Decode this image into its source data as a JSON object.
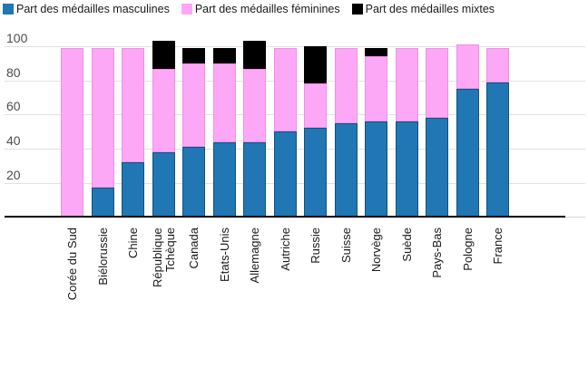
{
  "legend": {
    "items": [
      {
        "label": "Part des médailles masculines",
        "color": "#2077b4"
      },
      {
        "label": "Part des médailles féminines",
        "color": "#fda8f7"
      },
      {
        "label": "Part des médailles mixtes",
        "color": "#000000"
      }
    ]
  },
  "y_axis": {
    "tick_labels": [
      "20",
      "40",
      "60",
      "80",
      "100"
    ]
  },
  "chart_data": {
    "type": "bar",
    "stacked": true,
    "title": "",
    "xlabel": "",
    "ylabel": "",
    "unit": "%",
    "ylim": [
      0,
      105
    ],
    "grid": true,
    "legend_position": "top",
    "categories": [
      "Corée du Sud",
      "Biélorussie",
      "Chine",
      "République Tchèque",
      "Canada",
      "Etats-Unis",
      "Allemagne",
      "Autriche",
      "Russie",
      "Suisse",
      "Norvège",
      "Suède",
      "Pays-Bas",
      "Pologne",
      "France"
    ],
    "y_ticks": [
      20,
      40,
      60,
      80,
      100
    ],
    "series": [
      {
        "name": "Part des médailles masculines",
        "color": "#2077b4",
        "border_color": "#12527f",
        "values": [
          0,
          17,
          32,
          38,
          41,
          44,
          44,
          50,
          52,
          55,
          56,
          56,
          58,
          75,
          79
        ]
      },
      {
        "name": "Part des médailles féminines",
        "color": "#fda8f7",
        "border_color": "#ef8fe5",
        "values": [
          99,
          82,
          67,
          49,
          49,
          46,
          43,
          49,
          26,
          44,
          38,
          43,
          41,
          26,
          20
        ]
      },
      {
        "name": "Part des médailles mixtes",
        "color": "#000000",
        "border_color": "#000000",
        "values": [
          0,
          0,
          0,
          16,
          9,
          9,
          16,
          0,
          22,
          0,
          5,
          0,
          0,
          0,
          0
        ]
      }
    ]
  }
}
